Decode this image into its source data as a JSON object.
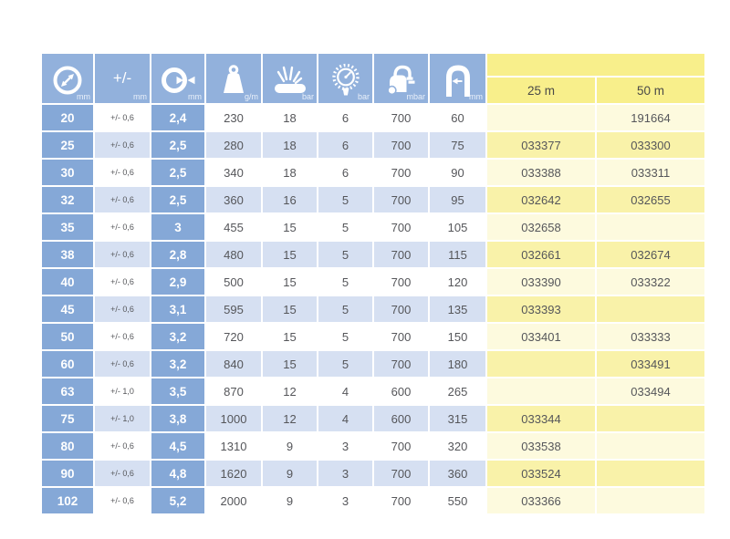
{
  "table": {
    "columns": [
      {
        "id": "inner-diameter",
        "icon": "inner-diameter-icon",
        "unit": "mm"
      },
      {
        "id": "tolerance",
        "icon": "tolerance-symbol",
        "symbol": "+/-",
        "unit": "mm"
      },
      {
        "id": "wall-thickness",
        "icon": "wall-thickness-icon",
        "unit": "mm"
      },
      {
        "id": "weight",
        "icon": "weight-icon",
        "unit": "g/m"
      },
      {
        "id": "burst-pressure",
        "icon": "burst-pressure-icon",
        "unit": "bar"
      },
      {
        "id": "working-pressure",
        "icon": "pressure-gauge-icon",
        "unit": "bar"
      },
      {
        "id": "vacuum",
        "icon": "vacuum-icon",
        "unit": "mbar"
      },
      {
        "id": "bend-radius",
        "icon": "bend-radius-icon",
        "unit": "mm"
      }
    ],
    "length_columns": [
      "25 m",
      "50 m"
    ],
    "rows": [
      [
        "20",
        "+/- 0,6",
        "2,4",
        "230",
        "18",
        "6",
        "700",
        "60",
        "",
        "191664"
      ],
      [
        "25",
        "+/- 0,6",
        "2,5",
        "280",
        "18",
        "6",
        "700",
        "75",
        "033377",
        "033300"
      ],
      [
        "30",
        "+/- 0,6",
        "2,5",
        "340",
        "18",
        "6",
        "700",
        "90",
        "033388",
        "033311"
      ],
      [
        "32",
        "+/- 0,6",
        "2,5",
        "360",
        "16",
        "5",
        "700",
        "95",
        "032642",
        "032655"
      ],
      [
        "35",
        "+/- 0,6",
        "3",
        "455",
        "15",
        "5",
        "700",
        "105",
        "032658",
        ""
      ],
      [
        "38",
        "+/- 0,6",
        "2,8",
        "480",
        "15",
        "5",
        "700",
        "115",
        "032661",
        "032674"
      ],
      [
        "40",
        "+/- 0,6",
        "2,9",
        "500",
        "15",
        "5",
        "700",
        "120",
        "033390",
        "033322"
      ],
      [
        "45",
        "+/- 0,6",
        "3,1",
        "595",
        "15",
        "5",
        "700",
        "135",
        "033393",
        ""
      ],
      [
        "50",
        "+/- 0,6",
        "3,2",
        "720",
        "15",
        "5",
        "700",
        "150",
        "033401",
        "033333"
      ],
      [
        "60",
        "+/- 0,6",
        "3,2",
        "840",
        "15",
        "5",
        "700",
        "180",
        "",
        "033491"
      ],
      [
        "63",
        "+/- 1,0",
        "3,5",
        "870",
        "12",
        "4",
        "600",
        "265",
        "",
        "033494"
      ],
      [
        "75",
        "+/- 1,0",
        "3,8",
        "1000",
        "12",
        "4",
        "600",
        "315",
        "033344",
        ""
      ],
      [
        "80",
        "+/- 0,6",
        "4,5",
        "1310",
        "9",
        "3",
        "700",
        "320",
        "033538",
        ""
      ],
      [
        "90",
        "+/- 0,6",
        "4,8",
        "1620",
        "9",
        "3",
        "700",
        "360",
        "033524",
        ""
      ],
      [
        "102",
        "+/- 0,6",
        "5,2",
        "2000",
        "9",
        "3",
        "700",
        "550",
        "033366",
        ""
      ]
    ],
    "colors": {
      "header_blue": "#92b1dc",
      "cell_blue": "#85a8d7",
      "row_blue": "#d6e0f2",
      "header_yellow": "#f8ef8b",
      "row_yellow_dark": "#f9f2a9",
      "row_yellow_pale": "#fdfade",
      "text_gray": "#55565a"
    }
  }
}
